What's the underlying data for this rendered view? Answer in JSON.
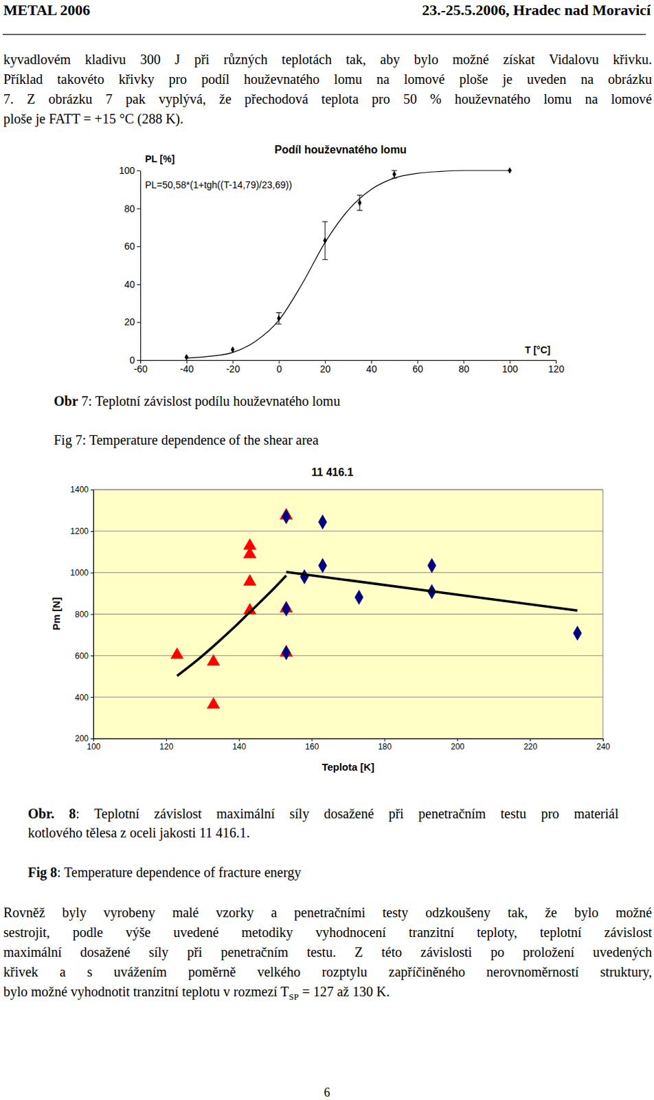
{
  "header": {
    "left": "METAL 2006",
    "right": "23.-25.5.2006, Hradec nad Moravicí"
  },
  "paragraphs": [
    [
      "kyvadlovém kladivu 300 J při různých teplotách tak, aby bylo možné získat Vidalovu křivku.",
      "Příklad takovéto křivky pro podíl houževnatého lomu na lomové ploše je uveden na obrázku",
      "7. Z obrázku 7 pak vyplývá, že přechodová teplota pro 50 % houževnatého lomu na lomové",
      "ploše je FATT = +15 °C (288 K)."
    ],
    [
      "Rovněž byly vyrobeny malé vzorky a penetračními testy odzkoušeny tak, že bylo možné",
      "sestrojit, podle výše uvedené metodiky vyhodnocení tranzitní teploty, teplotní závislost",
      "maximální dosažené síly při penetračním testu. Z této závislosti po proložení uvedených",
      "křivek a s uvážením poměrně velkého rozptylu zapříčiněného nerovnoměrností struktury,",
      [
        {
          "text": "bylo možné vyhodnotit tranzitní teplotu v rozmezí T"
        },
        {
          "text": "SP",
          "sub": true
        },
        {
          "text": " = 127 až 130 K."
        }
      ]
    ]
  ],
  "captions": [
    [
      {
        "text": "Obr",
        "bold": true
      },
      {
        "text": " 7: Teplotní závislost podílu houževnatého lomu"
      }
    ],
    [
      {
        "text": "Fig 7: Temperature dependence of the shear area"
      }
    ],
    [
      {
        "text": "Obr. 8",
        "bold": true
      },
      {
        "text": ": Teplotní závislost maximální síly dosažené při penetračním testu pro materiál"
      }
    ],
    [
      {
        "text": "kotlového tělesa z oceli jakosti 11 416.1."
      }
    ],
    [
      {
        "text": "Fig 8",
        "bold": true
      },
      {
        "text": ": Temperature dependence of fracture energy"
      }
    ]
  ],
  "page_number": "6",
  "chart_data": [
    {
      "type": "scatter",
      "title": "Podíl houževnatého lomu",
      "y_label": "PL [%]",
      "x_label": "T [°C]",
      "annotation": "PL=50,58*(1+tgh((T-14,79)/23,69))",
      "xlim": [
        -60,
        120
      ],
      "xticks": [
        -60,
        -40,
        -20,
        0,
        20,
        40,
        60,
        80,
        100,
        120
      ],
      "ylim": [
        0,
        100
      ],
      "yticks": [
        0,
        20,
        40,
        60,
        80,
        100
      ],
      "grid": false,
      "series": [
        {
          "type": "line",
          "color": "#000000",
          "line_style": "solid",
          "x": [
            -40,
            -30,
            -20,
            -10,
            0,
            10,
            20,
            30,
            40,
            50,
            60,
            70,
            80,
            100
          ],
          "values": [
            1,
            2,
            4,
            10,
            21,
            40,
            62,
            79,
            90,
            96,
            98.5,
            99.5,
            100,
            100
          ]
        },
        {
          "type": "scatter",
          "color": "#000000",
          "marker": "diamond",
          "x": [
            -40,
            -20,
            0,
            20,
            35,
            50,
            100
          ],
          "values": [
            1.5,
            5.5,
            22,
            63,
            83,
            98,
            100
          ],
          "errors": [
            null,
            null,
            3,
            10,
            4,
            2,
            null
          ]
        }
      ]
    },
    {
      "type": "scatter",
      "title": "11 416.1",
      "y_label": "Pm [N]",
      "x_label": "Teplota [K]",
      "xlim": [
        100,
        240
      ],
      "xticks": [
        100,
        120,
        140,
        160,
        180,
        200,
        220,
        240
      ],
      "ylim": [
        200,
        1400
      ],
      "yticks": [
        200,
        400,
        600,
        800,
        1000,
        1200,
        1400
      ],
      "grid": true,
      "series": [
        {
          "type": "scatter",
          "color": "#ff0000",
          "marker": "triangle",
          "x": [
            123,
            133,
            133,
            143,
            143,
            143,
            143,
            153,
            153,
            153
          ],
          "values": [
            603,
            570,
            363,
            1129,
            1088,
            956,
            817,
            1275,
            827,
            614
          ]
        },
        {
          "type": "scatter",
          "color": "#000080",
          "marker": "diamond",
          "x": [
            153,
            153,
            153,
            158,
            163,
            163,
            173,
            193,
            193,
            233
          ],
          "values": [
            1270,
            825,
            614,
            980,
            1244,
            1034,
            881,
            1034,
            908,
            708
          ]
        },
        {
          "type": "line",
          "color": "#000000",
          "line_style": "solid",
          "x": [
            123,
            128,
            133,
            138,
            143,
            148,
            153
          ],
          "values": [
            502,
            570,
            645,
            725,
            810,
            895,
            986
          ]
        },
        {
          "type": "line",
          "color": "#000000",
          "line_style": "solid",
          "x": [
            153,
            233
          ],
          "values": [
            1003,
            817
          ]
        }
      ]
    }
  ]
}
